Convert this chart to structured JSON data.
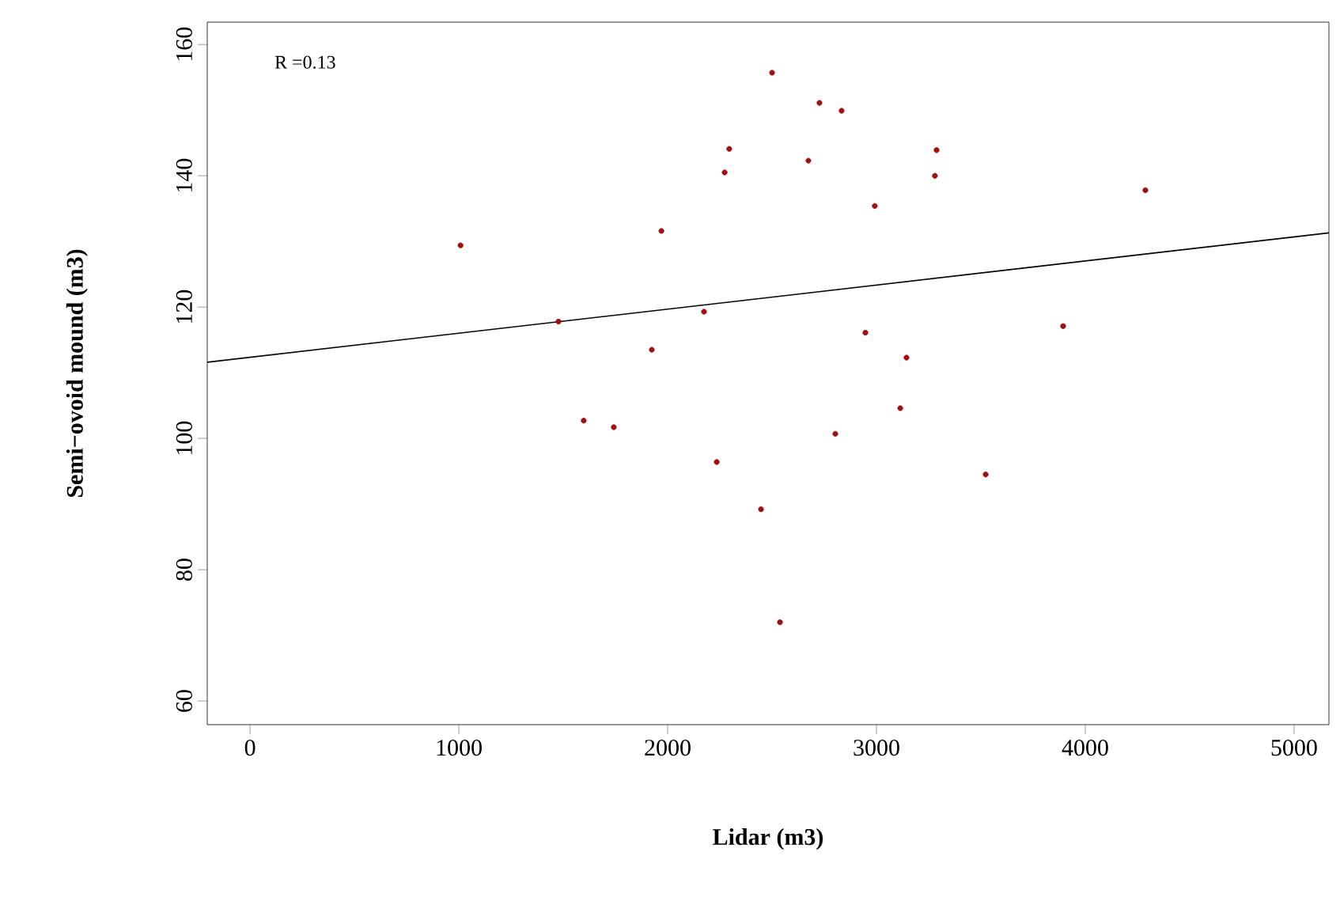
{
  "chart_data": {
    "type": "scatter",
    "xlabel": "Lidar (m3)",
    "ylabel": "Semi−ovoid mound (m3)",
    "annotations": [
      "R =0.13"
    ],
    "xlim": [
      -205,
      5167
    ],
    "ylim": [
      56.4,
      163.4
    ],
    "xticks": [
      0,
      1000,
      2000,
      3000,
      4000,
      5000
    ],
    "yticks": [
      60,
      80,
      100,
      120,
      140,
      160
    ],
    "grid": false,
    "marker": "circle",
    "series": [
      {
        "color": "#a01010",
        "x": [
          1008,
          1477,
          1598,
          1742,
          1924,
          1970,
          2174,
          2235,
          2273,
          2295,
          2447,
          2500,
          2538,
          2674,
          2727,
          2803,
          2833,
          2947,
          2992,
          3114,
          3144,
          3280,
          3288,
          3523,
          3894,
          4288
        ],
        "values": [
          129.4,
          117.8,
          102.7,
          101.7,
          113.5,
          131.6,
          119.3,
          96.4,
          140.5,
          144.1,
          89.2,
          155.7,
          72.0,
          142.3,
          151.1,
          100.7,
          149.9,
          116.1,
          135.4,
          104.6,
          112.3,
          140.0,
          143.9,
          94.5,
          117.1,
          137.8
        ]
      },
      {
        "type": "line",
        "color": "#000000",
        "marker": "none",
        "x": [
          -205,
          5167
        ],
        "values": [
          111.6,
          131.3
        ]
      }
    ]
  }
}
